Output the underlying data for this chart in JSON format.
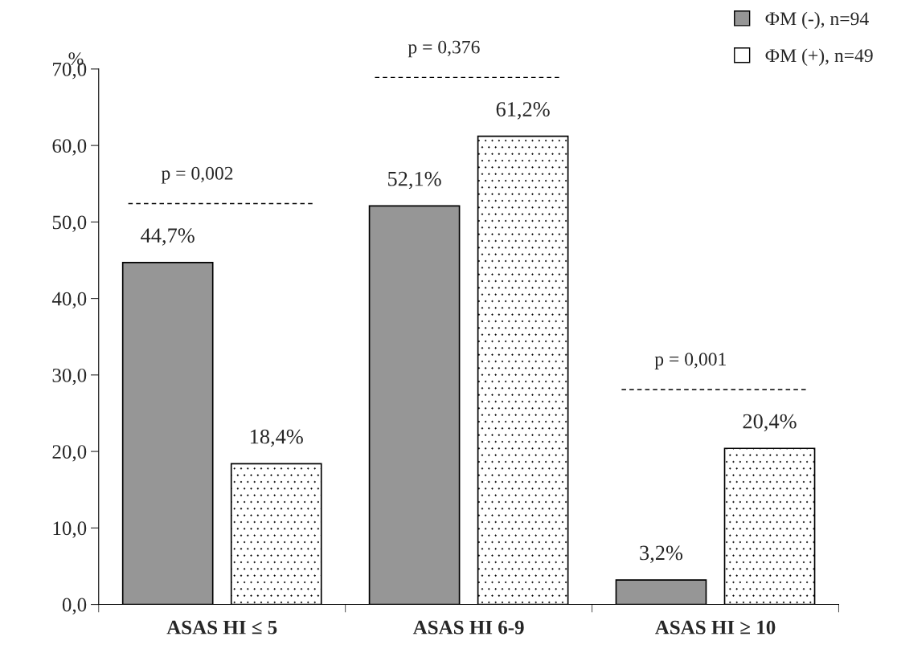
{
  "chart_data": {
    "type": "bar",
    "ylabel": "%",
    "categories": [
      "ASAS HI ≤ 5",
      "ASAS HI 6-9",
      "ASAS HI ≥ 10"
    ],
    "series": [
      {
        "name": "ФМ (-), n=94",
        "color": "#969696",
        "values": [
          44.7,
          52.1,
          3.2
        ],
        "value_labels": [
          "44,7%",
          "52,1%",
          "3,2%"
        ]
      },
      {
        "name": "ФМ (+), n=49",
        "color": "#ffffff",
        "values": [
          18.4,
          61.2,
          20.4
        ],
        "value_labels": [
          "18,4%",
          "61,2%",
          "20,4%"
        ]
      }
    ],
    "ylim": [
      0,
      70
    ],
    "yticks": [
      {
        "value": 0,
        "label": "0,0"
      },
      {
        "value": 10,
        "label": "10,0"
      },
      {
        "value": 20,
        "label": "20,0"
      },
      {
        "value": 30,
        "label": "30,0"
      },
      {
        "value": 40,
        "label": "40,0"
      },
      {
        "value": 50,
        "label": "50,0"
      },
      {
        "value": 60,
        "label": "60,0"
      },
      {
        "value": 70,
        "label": "70,0"
      }
    ],
    "annotations": [
      "p = 0,002",
      "p = 0,376",
      "p = 0,001"
    ],
    "grid": false,
    "legend": "top right"
  }
}
